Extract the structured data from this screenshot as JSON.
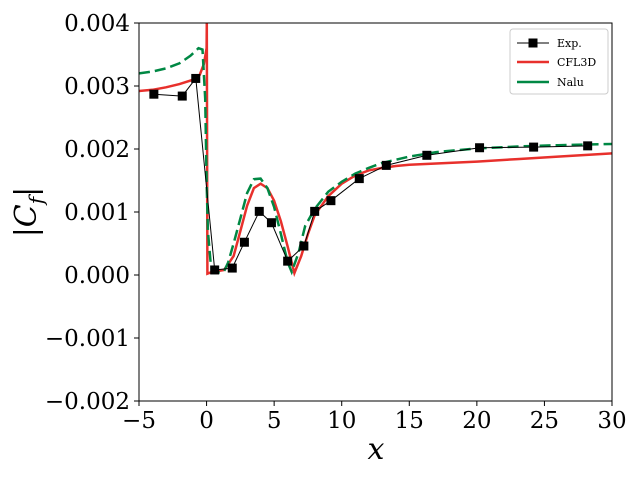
{
  "chart_data": {
    "type": "line",
    "xlabel": "x",
    "ylabel": "|C_f|",
    "xlim": [
      -5,
      30
    ],
    "ylim": [
      -0.002,
      0.004
    ],
    "xticks": [
      -5,
      0,
      5,
      10,
      15,
      20,
      25,
      30
    ],
    "yticks": [
      -0.002,
      -0.001,
      0.0,
      0.001,
      0.002,
      0.003,
      0.004
    ],
    "xtick_labels": [
      "−5",
      "0",
      "5",
      "10",
      "15",
      "20",
      "25",
      "30"
    ],
    "ytick_labels": [
      "−0.002",
      "−0.001",
      "0.000",
      "0.001",
      "0.002",
      "0.003",
      "0.004"
    ],
    "grid": false,
    "legend_position": "top-right",
    "series": [
      {
        "name": "Exp.",
        "style": "line-with-square-markers",
        "color": "#000000",
        "x": [
          -3.9,
          -1.8,
          -0.8,
          0.6,
          1.9,
          2.8,
          3.9,
          4.8,
          6.0,
          7.2,
          8.0,
          9.2,
          11.3,
          13.3,
          16.3,
          20.2,
          24.2,
          28.2
        ],
        "y": [
          0.00287,
          0.00284,
          0.00312,
          8e-05,
          0.00011,
          0.00052,
          0.00101,
          0.00083,
          0.00022,
          0.00046,
          0.00101,
          0.00118,
          0.00153,
          0.00174,
          0.0019,
          0.00202,
          0.00203,
          0.00205
        ]
      },
      {
        "name": "CFL3D",
        "style": "solid",
        "color": "#e8302c",
        "x": [
          -5,
          -4,
          -3,
          -2,
          -1,
          -0.5,
          -0.2,
          0.0,
          0.02,
          0.04,
          0.06,
          0.3,
          0.8,
          1.3,
          2.0,
          2.5,
          3.0,
          3.5,
          4.0,
          4.5,
          5.0,
          5.5,
          6.0,
          6.5,
          7.0,
          7.5,
          8.0,
          9.0,
          10.0,
          11.0,
          12.0,
          13.0,
          14.0,
          15.0,
          17.0,
          20.0,
          23.0,
          26.0,
          30.0
        ],
        "y": [
          0.00292,
          0.00294,
          0.00298,
          0.00303,
          0.0031,
          0.00318,
          0.00335,
          0.0036,
          0.004,
          0.002,
          2e-05,
          4e-05,
          6e-05,
          8e-05,
          0.0003,
          0.0007,
          0.0011,
          0.00138,
          0.00145,
          0.00138,
          0.00118,
          0.00085,
          0.00045,
          3e-05,
          0.0003,
          0.00065,
          0.00095,
          0.00125,
          0.00145,
          0.00158,
          0.00166,
          0.0017,
          0.00173,
          0.00175,
          0.00177,
          0.0018,
          0.00184,
          0.00188,
          0.00193
        ]
      },
      {
        "name": "Nalu",
        "style": "dashed",
        "color": "#008844",
        "x": [
          -5,
          -4,
          -3,
          -2,
          -1.2,
          -0.6,
          -0.3,
          -0.1,
          0.0,
          0.1,
          0.3,
          0.6,
          1.0,
          1.3,
          1.6,
          2.0,
          2.5,
          3.0,
          3.5,
          4.0,
          4.5,
          5.0,
          5.5,
          6.0,
          6.3,
          6.8,
          7.3,
          8.0,
          9.0,
          10.0,
          11.0,
          12.0,
          13.0,
          15.0,
          17.0,
          20.0,
          23.0,
          26.0,
          30.0
        ],
        "y": [
          0.0032,
          0.00323,
          0.00328,
          0.00336,
          0.00348,
          0.0036,
          0.00358,
          0.0028,
          0.0015,
          0.0007,
          0.0002,
          5e-05,
          4e-05,
          6e-05,
          0.0002,
          0.0005,
          0.0009,
          0.0013,
          0.00152,
          0.00153,
          0.00138,
          0.00108,
          0.00065,
          0.0002,
          5e-05,
          0.00035,
          0.00078,
          0.00105,
          0.00132,
          0.00148,
          0.00161,
          0.0017,
          0.00178,
          0.00188,
          0.00195,
          0.00201,
          0.00204,
          0.00206,
          0.00208
        ]
      }
    ]
  }
}
